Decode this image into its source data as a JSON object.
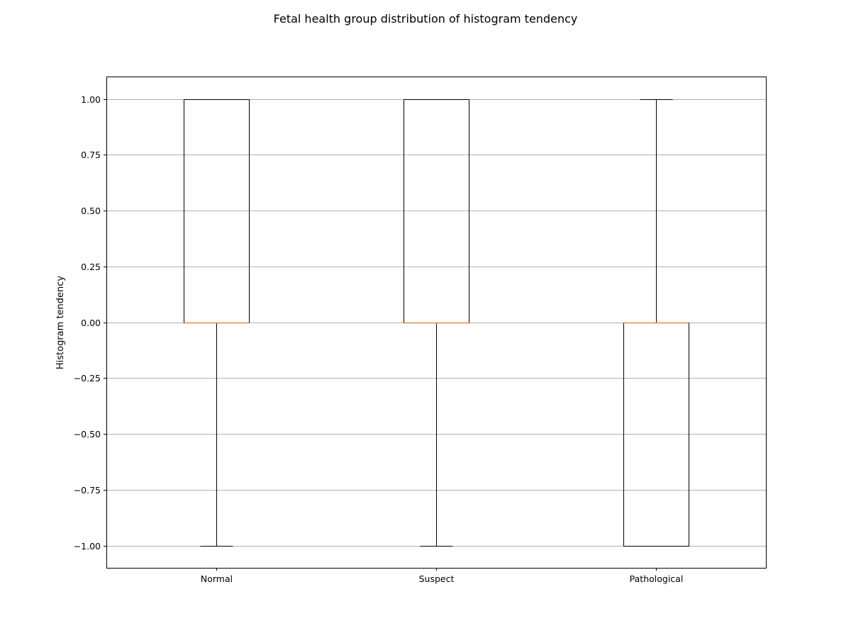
{
  "chart_data": {
    "type": "boxplot",
    "title": "Fetal health group distribution of histogram tendency",
    "xlabel": "",
    "ylabel": "Histogram tendency",
    "categories": [
      "Normal",
      "Suspect",
      "Pathological"
    ],
    "boxes": [
      {
        "category": "Normal",
        "whisker_low": -1.0,
        "q1": 0.0,
        "median": 0.0,
        "q3": 1.0,
        "whisker_high": 1.0
      },
      {
        "category": "Suspect",
        "whisker_low": -1.0,
        "q1": 0.0,
        "median": 0.0,
        "q3": 1.0,
        "whisker_high": 1.0
      },
      {
        "category": "Pathological",
        "whisker_low": -1.0,
        "q1": -1.0,
        "median": 0.0,
        "q3": 0.0,
        "whisker_high": 1.0
      }
    ],
    "ylim": [
      -1.1,
      1.1
    ],
    "yticks": [
      1.0,
      0.75,
      0.5,
      0.25,
      0.0,
      -0.25,
      -0.5,
      -0.75,
      -1.0
    ],
    "ytick_labels": [
      "1.00",
      "0.75",
      "0.50",
      "0.25",
      "0.00",
      "−0.25",
      "−0.50",
      "−0.75",
      "−1.00"
    ],
    "grid": "y-axis",
    "colors": {
      "box": "#000000",
      "median": "#e8884a",
      "grid": "#b0b0b0",
      "frame": "#000000"
    }
  }
}
